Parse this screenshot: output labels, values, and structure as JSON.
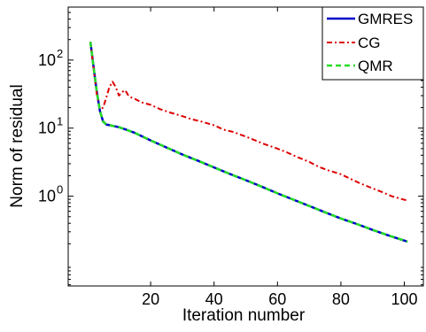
{
  "chart_data": {
    "type": "line",
    "xlabel": "Iteration number",
    "ylabel": "Norm of residual",
    "xlim": [
      -6,
      106
    ],
    "xscale": "linear",
    "yscale": "log",
    "ylim": [
      0.048,
      600
    ],
    "grid": false,
    "legend_position": "top-right",
    "x_ticks": [
      {
        "value": 20,
        "label": "20"
      },
      {
        "value": 40,
        "label": "40"
      },
      {
        "value": 60,
        "label": "60"
      },
      {
        "value": 80,
        "label": "80"
      },
      {
        "value": 100,
        "label": "100"
      }
    ],
    "y_ticks": [
      {
        "value": 1,
        "base": "10",
        "exp": "0"
      },
      {
        "value": 10,
        "base": "10",
        "exp": "1"
      },
      {
        "value": 100,
        "base": "10",
        "exp": "2"
      }
    ],
    "series": [
      {
        "name": "GMRES",
        "color": "#0000cc",
        "dash": "solid",
        "x": [
          1,
          2,
          3,
          4,
          5,
          6,
          8,
          10,
          12,
          15,
          20,
          25,
          30,
          35,
          40,
          45,
          50,
          55,
          60,
          65,
          70,
          75,
          80,
          85,
          90,
          95,
          101
        ],
        "y": [
          185,
          80,
          35,
          18,
          12.5,
          11.3,
          10.8,
          10.3,
          9.6,
          8.5,
          6.6,
          5.2,
          4.1,
          3.3,
          2.65,
          2.12,
          1.72,
          1.38,
          1.1,
          0.89,
          0.72,
          0.58,
          0.47,
          0.39,
          0.32,
          0.265,
          0.215
        ]
      },
      {
        "name": "CG",
        "color": "#dd0000",
        "dash": "dashdot",
        "x": [
          1,
          2,
          3,
          4,
          5,
          6,
          7,
          8,
          9,
          10,
          11,
          12,
          13,
          14,
          15,
          17,
          20,
          23,
          26,
          30,
          33,
          36,
          40,
          43,
          46,
          50,
          53,
          56,
          60,
          63,
          66,
          70,
          73,
          76,
          80,
          83,
          86,
          90,
          93,
          96,
          101
        ],
        "y": [
          185,
          75,
          32,
          19,
          20,
          28,
          40,
          48,
          40,
          30,
          34,
          36,
          30,
          28,
          27,
          24,
          22,
          19,
          17,
          15,
          13.5,
          12.5,
          11,
          9.5,
          8.8,
          7.5,
          6.6,
          5.8,
          5.0,
          4.4,
          3.8,
          3.2,
          2.7,
          2.4,
          2.1,
          1.8,
          1.55,
          1.3,
          1.15,
          1.0,
          0.86
        ]
      },
      {
        "name": "QMR",
        "color": "#22dd22",
        "dash": "dashed",
        "x": [
          1,
          2,
          3,
          4,
          5,
          6,
          8,
          10,
          12,
          15,
          20,
          25,
          30,
          35,
          40,
          45,
          50,
          55,
          60,
          65,
          70,
          75,
          80,
          85,
          90,
          95,
          101
        ],
        "y": [
          185,
          80,
          35,
          18,
          12.5,
          11.3,
          10.8,
          10.3,
          9.6,
          8.5,
          6.6,
          5.2,
          4.1,
          3.3,
          2.65,
          2.12,
          1.72,
          1.38,
          1.1,
          0.89,
          0.72,
          0.58,
          0.47,
          0.39,
          0.32,
          0.265,
          0.215
        ]
      }
    ]
  }
}
